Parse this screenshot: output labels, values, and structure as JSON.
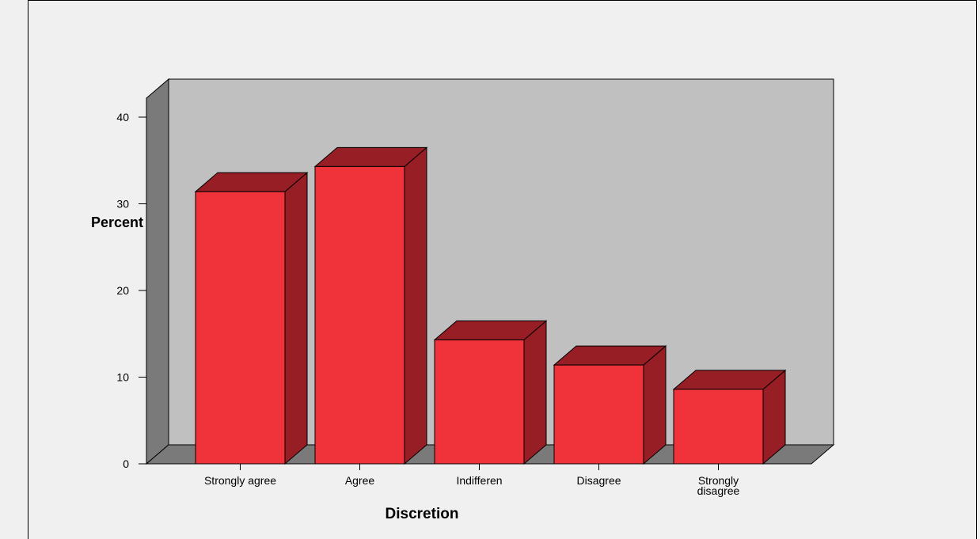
{
  "chart_data": {
    "type": "bar",
    "style": "3d",
    "categories": [
      "Strongly agree",
      "Agree",
      "Indifferen",
      "Disagree",
      "Strongly disagree"
    ],
    "category_label_lines": [
      [
        "Strongly agree"
      ],
      [
        "Agree"
      ],
      [
        "Indifferen"
      ],
      [
        "Disagree"
      ],
      [
        "Strongly",
        "disagree"
      ]
    ],
    "values": [
      31.4,
      34.3,
      14.3,
      11.4,
      8.6
    ],
    "xlabel": "Discretion",
    "ylabel": "Percent",
    "ylim": [
      0,
      40
    ],
    "yticks": [
      0,
      10,
      20,
      30,
      40
    ],
    "grid": false,
    "colors": {
      "bar_front": "#f0323a",
      "bar_side": "#961e24",
      "bar_top": "#961e24",
      "back_wall": "#c0c0c0",
      "side_wall": "#7a7a7a",
      "floor": "#7a7a7a",
      "background": "#f0f0f0"
    }
  }
}
